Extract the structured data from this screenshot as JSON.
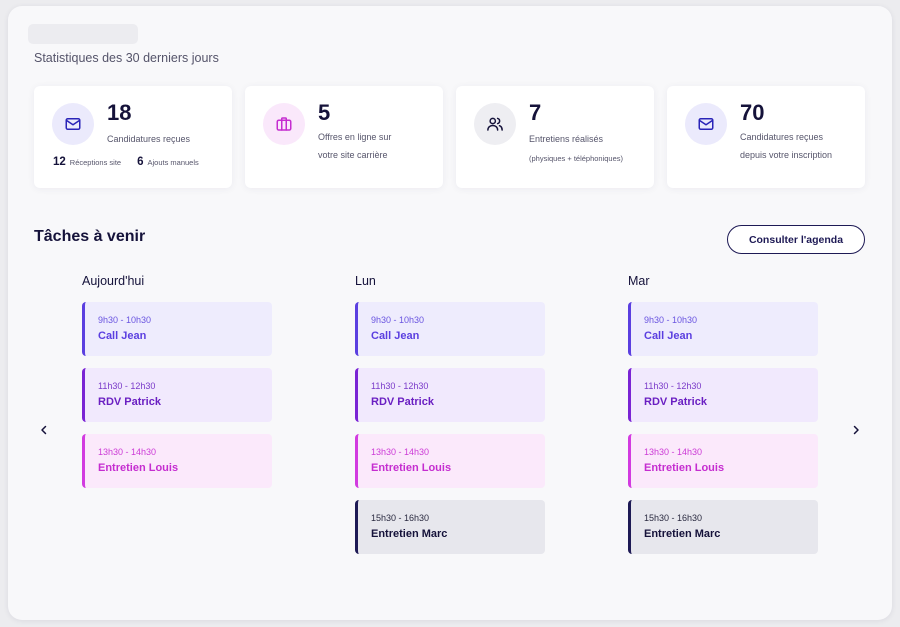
{
  "header": {
    "subtitle": "Statistiques des 30 derniers jours"
  },
  "stats": [
    {
      "icon": "mail-icon",
      "number": "18",
      "label": "Candidatures reçues",
      "sub": [
        {
          "value": "12",
          "label": "Réceptions site"
        },
        {
          "value": "6",
          "label": "Ajouts manuels"
        }
      ]
    },
    {
      "icon": "briefcase-icon",
      "number": "5",
      "label_line1": "Offres en ligne sur",
      "label_line2": "votre site carrière"
    },
    {
      "icon": "users-icon",
      "number": "7",
      "label": "Entretiens réalisés",
      "note": "(physiques + téléphoniques)"
    },
    {
      "icon": "mail-icon",
      "number": "70",
      "label_line1": "Candidatures reçues",
      "label_line2": "depuis votre inscription"
    }
  ],
  "tasks_section": {
    "title": "Tâches à venir",
    "agenda_button": "Consulter l'agenda",
    "days": [
      {
        "title": "Aujourd'hui",
        "tasks": [
          {
            "time": "9h30 - 10h30",
            "name": "Call Jean"
          },
          {
            "time": "11h30 - 12h30",
            "name": "RDV Patrick"
          },
          {
            "time": "13h30 - 14h30",
            "name": "Entretien Louis"
          }
        ]
      },
      {
        "title": "Lun",
        "tasks": [
          {
            "time": "9h30 - 10h30",
            "name": "Call Jean"
          },
          {
            "time": "11h30 - 12h30",
            "name": "RDV Patrick"
          },
          {
            "time": "13h30 - 14h30",
            "name": "Entretien Louis"
          },
          {
            "time": "15h30 - 16h30",
            "name": "Entretien Marc"
          }
        ]
      },
      {
        "title": "Mar",
        "tasks": [
          {
            "time": "9h30 - 10h30",
            "name": "Call Jean"
          },
          {
            "time": "11h30 - 12h30",
            "name": "RDV Patrick"
          },
          {
            "time": "13h30 - 14h30",
            "name": "Entretien Louis"
          },
          {
            "time": "15h30 - 16h30",
            "name": "Entretien Marc"
          }
        ]
      }
    ]
  },
  "colors": {
    "navy": "#15123a",
    "violet": "#5b3fe0",
    "purple": "#6a1fc2",
    "pink": "#c52dd0",
    "icon_bg_blue": "#ebeafc",
    "icon_bg_pink": "#fae8fb",
    "icon_bg_gray": "#eeeef2"
  }
}
